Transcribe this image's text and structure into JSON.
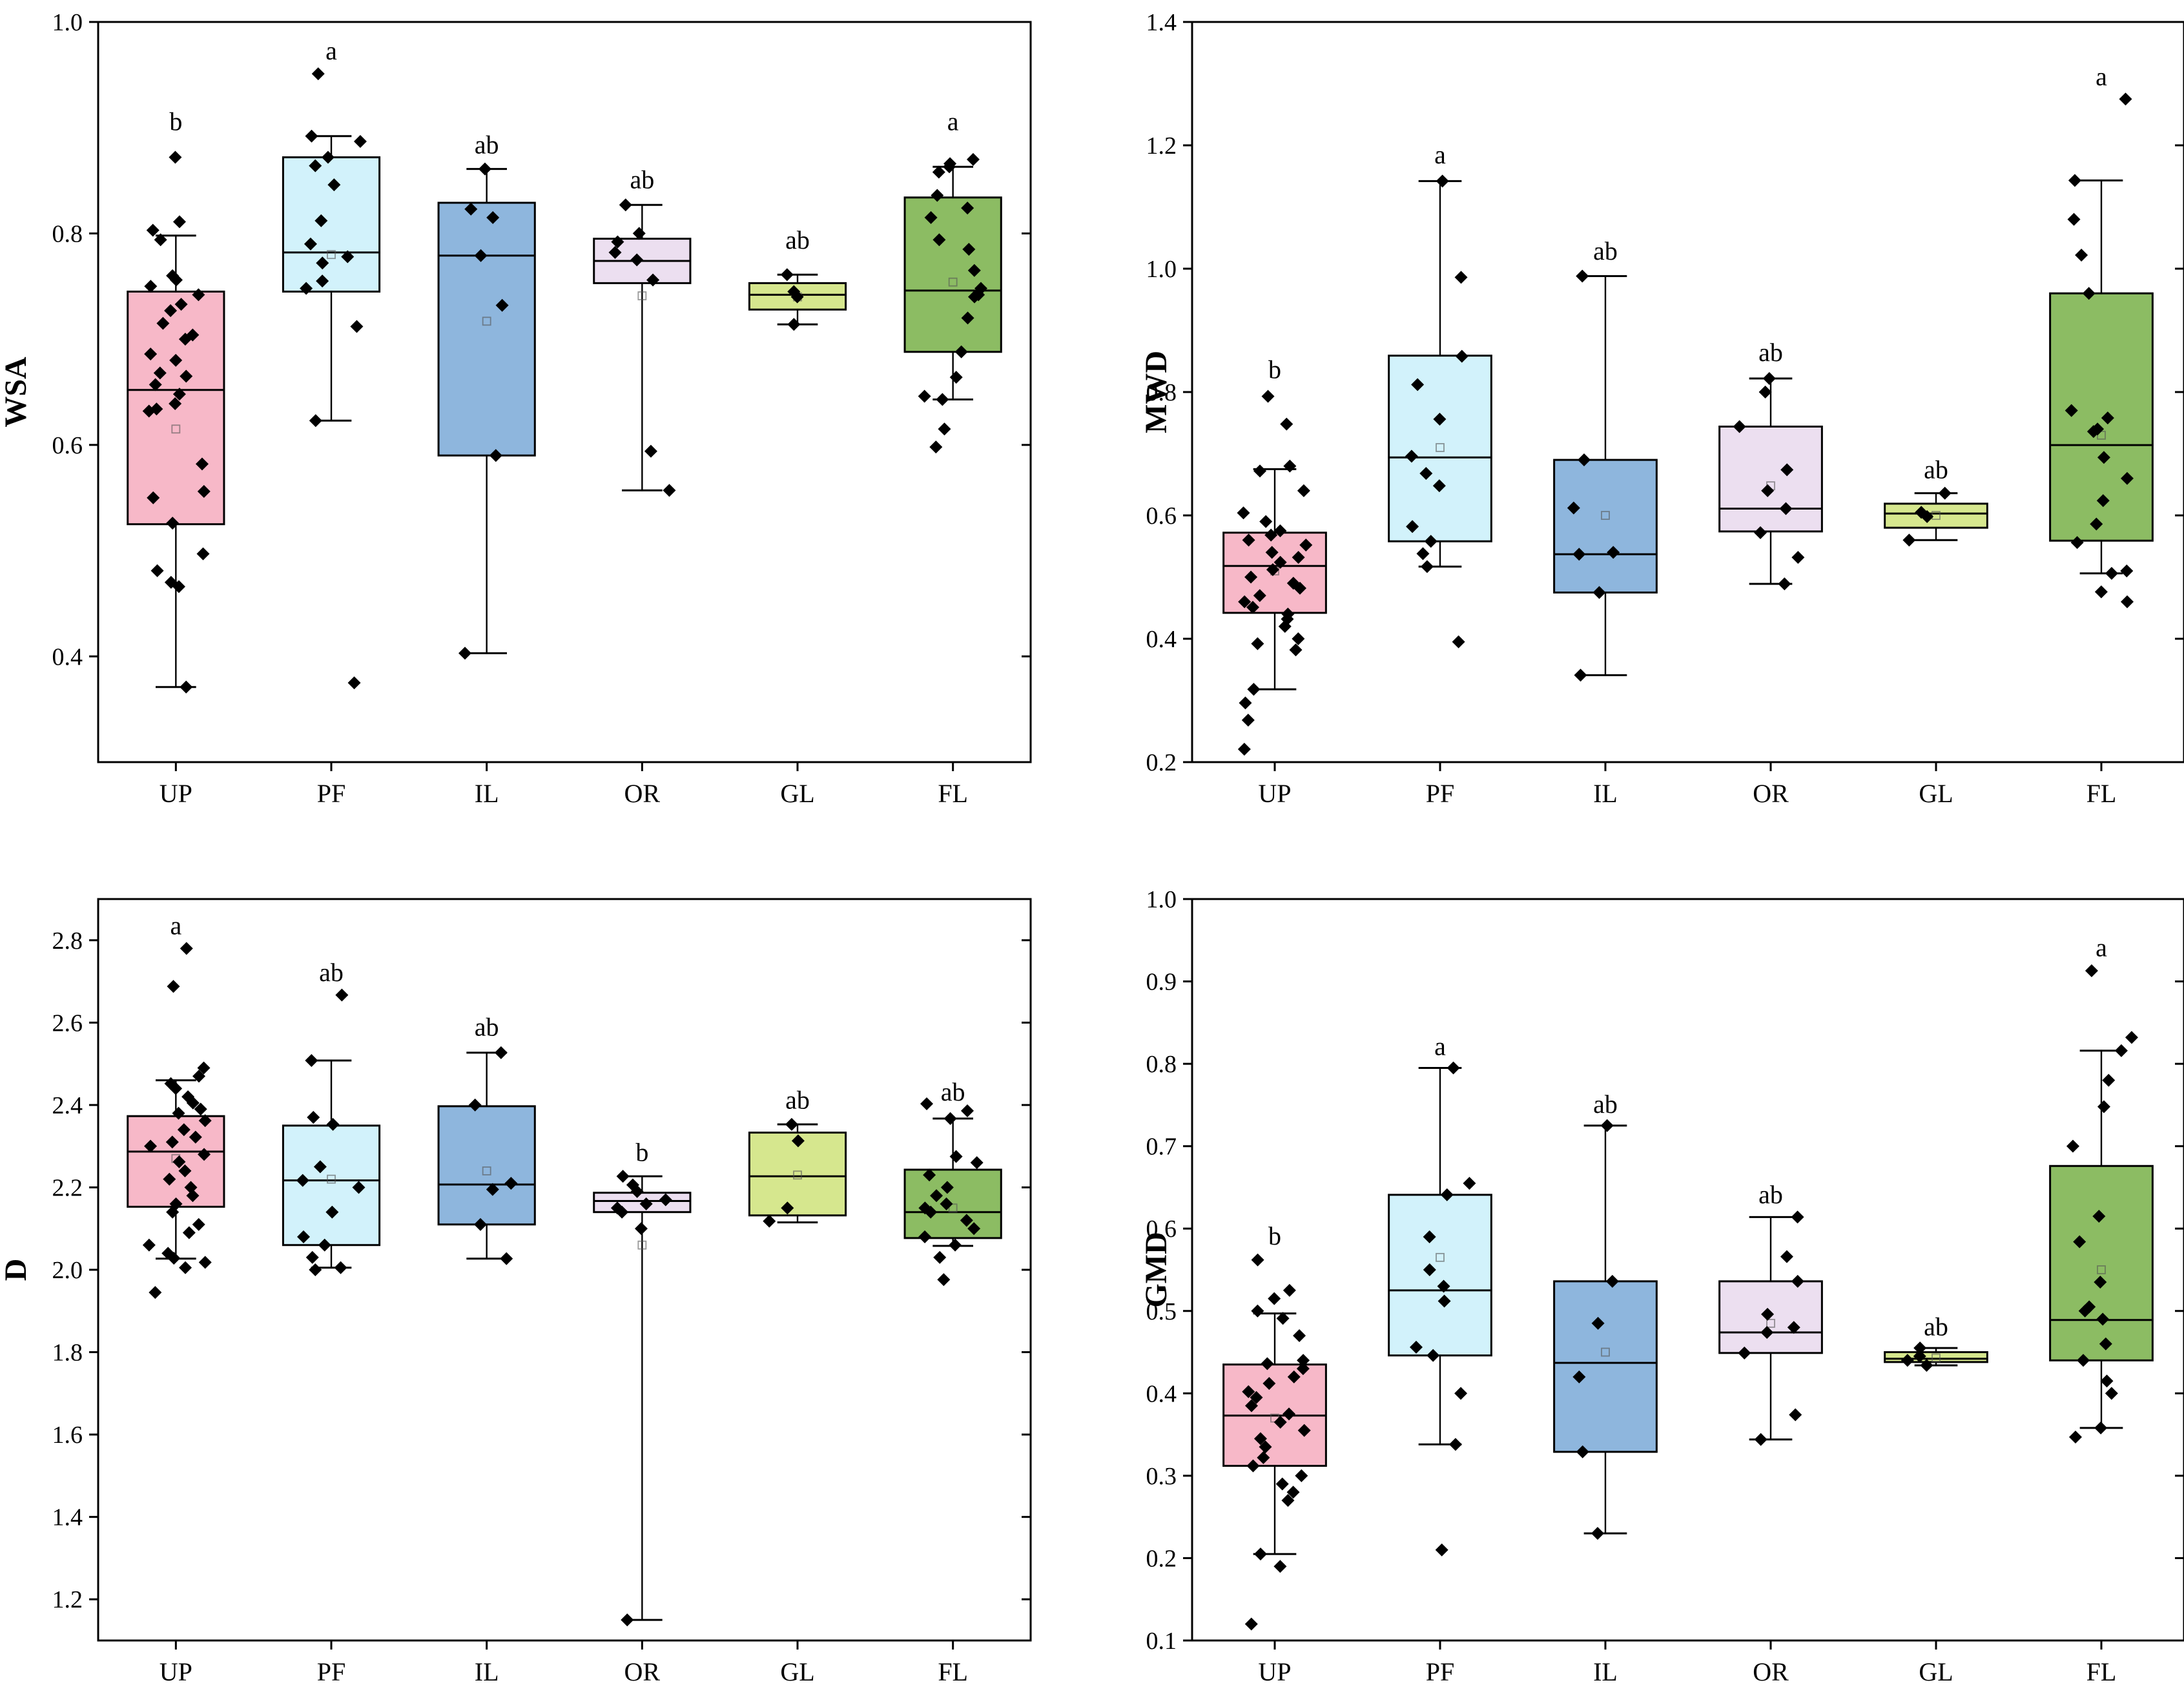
{
  "chart_data": [
    {
      "type": "box",
      "ylabel": "WSA",
      "ylim": [
        0.3,
        1.0
      ],
      "yticks": [
        0.4,
        0.6,
        0.8,
        1.0
      ],
      "ytick_labels": [
        "0.4",
        "0.6",
        "0.8",
        "1.0"
      ],
      "categories": [
        "UP",
        "PF",
        "IL",
        "OR",
        "GL",
        "FL"
      ],
      "box_colors": [
        "#f7b8c8",
        "#d2f2fb",
        "#8eb6dd",
        "#ecdff0",
        "#d6e78e",
        "#8cbc63"
      ],
      "boxes": [
        {
          "q1": 0.525,
          "median": 0.652,
          "q3": 0.745,
          "whisker_low": 0.371,
          "whisker_high": 0.798,
          "mean": 0.615
        },
        {
          "q1": 0.745,
          "median": 0.782,
          "q3": 0.872,
          "whisker_low": 0.623,
          "whisker_high": 0.892,
          "mean": 0.78
        },
        {
          "q1": 0.59,
          "median": 0.779,
          "q3": 0.829,
          "whisker_low": 0.403,
          "whisker_high": 0.861,
          "mean": 0.717
        },
        {
          "q1": 0.753,
          "median": 0.774,
          "q3": 0.795,
          "whisker_low": 0.557,
          "whisker_high": 0.827,
          "mean": 0.741
        },
        {
          "q1": 0.728,
          "median": 0.742,
          "q3": 0.753,
          "whisker_low": 0.714,
          "whisker_high": 0.761,
          "mean": 0.74
        },
        {
          "q1": 0.688,
          "median": 0.746,
          "q3": 0.834,
          "whisker_low": 0.643,
          "whisker_high": 0.863,
          "mean": 0.754
        }
      ],
      "points": [
        [
          0.872,
          0.811,
          0.803,
          0.794,
          0.76,
          0.756,
          0.75,
          0.742,
          0.733,
          0.727,
          0.715,
          0.704,
          0.7,
          0.686,
          0.68,
          0.668,
          0.665,
          0.657,
          0.648,
          0.639,
          0.634,
          0.632,
          0.582,
          0.556,
          0.55,
          0.526,
          0.497,
          0.481,
          0.47,
          0.466,
          0.371
        ],
        [
          0.951,
          0.892,
          0.887,
          0.872,
          0.864,
          0.846,
          0.812,
          0.79,
          0.778,
          0.772,
          0.755,
          0.748,
          0.712,
          0.623,
          0.375
        ],
        [
          0.861,
          0.823,
          0.815,
          0.779,
          0.732,
          0.59,
          0.403
        ],
        [
          0.827,
          0.8,
          0.792,
          0.782,
          0.775,
          0.756,
          0.594,
          0.557
        ],
        [
          0.761,
          0.745,
          0.74,
          0.714
        ],
        [
          0.87,
          0.866,
          0.863,
          0.858,
          0.836,
          0.824,
          0.815,
          0.794,
          0.785,
          0.765,
          0.748,
          0.742,
          0.74,
          0.72,
          0.688,
          0.664,
          0.646,
          0.643,
          0.615,
          0.598
        ]
      ],
      "sig_letters": [
        "b",
        "a",
        "ab",
        "ab",
        "ab",
        "a"
      ],
      "sig_values": [
        0.905,
        0.972,
        0.883,
        0.85,
        0.793,
        0.905
      ]
    },
    {
      "type": "box",
      "ylabel": "MWD",
      "ylim": [
        0.2,
        1.4
      ],
      "yticks": [
        0.2,
        0.4,
        0.6,
        0.8,
        1.0,
        1.2,
        1.4
      ],
      "ytick_labels": [
        "0.2",
        "0.4",
        "0.6",
        "0.8",
        "1.0",
        "1.2",
        "1.4"
      ],
      "categories": [
        "UP",
        "PF",
        "IL",
        "OR",
        "GL",
        "FL"
      ],
      "box_colors": [
        "#f7b8c8",
        "#d2f2fb",
        "#8eb6dd",
        "#ecdff0",
        "#d6e78e",
        "#8cbc63"
      ],
      "boxes": [
        {
          "q1": 0.442,
          "median": 0.518,
          "q3": 0.572,
          "whisker_low": 0.318,
          "whisker_high": 0.675,
          "mean": 0.51
        },
        {
          "q1": 0.558,
          "median": 0.694,
          "q3": 0.859,
          "whisker_low": 0.517,
          "whisker_high": 1.142,
          "mean": 0.71
        },
        {
          "q1": 0.475,
          "median": 0.537,
          "q3": 0.69,
          "whisker_low": 0.341,
          "whisker_high": 0.988,
          "mean": 0.6
        },
        {
          "q1": 0.574,
          "median": 0.611,
          "q3": 0.744,
          "whisker_low": 0.489,
          "whisker_high": 0.822,
          "mean": 0.648
        },
        {
          "q1": 0.58,
          "median": 0.603,
          "q3": 0.619,
          "whisker_low": 0.56,
          "whisker_high": 0.636,
          "mean": 0.6
        },
        {
          "q1": 0.559,
          "median": 0.714,
          "q3": 0.96,
          "whisker_low": 0.506,
          "whisker_high": 1.143,
          "mean": 0.73
        }
      ],
      "points": [
        [
          0.793,
          0.748,
          0.68,
          0.672,
          0.64,
          0.604,
          0.59,
          0.575,
          0.568,
          0.56,
          0.552,
          0.54,
          0.532,
          0.524,
          0.512,
          0.5,
          0.49,
          0.482,
          0.47,
          0.46,
          0.451,
          0.44,
          0.432,
          0.42,
          0.4,
          0.392,
          0.382,
          0.318,
          0.296,
          0.268,
          0.221
        ],
        [
          1.142,
          0.986,
          0.858,
          0.812,
          0.756,
          0.696,
          0.668,
          0.648,
          0.582,
          0.558,
          0.538,
          0.517,
          0.395
        ],
        [
          0.988,
          0.69,
          0.612,
          0.54,
          0.537,
          0.475,
          0.341
        ],
        [
          0.822,
          0.8,
          0.744,
          0.674,
          0.64,
          0.611,
          0.572,
          0.532,
          0.489
        ],
        [
          0.636,
          0.605,
          0.598,
          0.56
        ],
        [
          1.275,
          1.143,
          1.08,
          1.022,
          0.96,
          0.77,
          0.758,
          0.74,
          0.736,
          0.694,
          0.66,
          0.624,
          0.586,
          0.556,
          0.51,
          0.506,
          0.476,
          0.46
        ]
      ],
      "sig_letters": [
        "b",
        "a",
        "ab",
        "ab",
        "ab",
        "a"
      ],
      "sig_values": [
        0.835,
        1.183,
        1.027,
        0.863,
        0.673,
        1.31
      ]
    },
    {
      "type": "box",
      "ylabel": "D",
      "ylim": [
        1.1,
        2.9
      ],
      "yticks": [
        1.2,
        1.4,
        1.6,
        1.8,
        2.0,
        2.2,
        2.4,
        2.6,
        2.8
      ],
      "ytick_labels": [
        "1.2",
        "1.4",
        "1.6",
        "1.8",
        "2.0",
        "2.2",
        "2.4",
        "2.6",
        "2.8"
      ],
      "categories": [
        "UP",
        "PF",
        "IL",
        "OR",
        "GL",
        "FL"
      ],
      "box_colors": [
        "#f7b8c8",
        "#d2f2fb",
        "#8eb6dd",
        "#ecdff0",
        "#d6e78e",
        "#8cbc63"
      ],
      "boxes": [
        {
          "q1": 2.153,
          "median": 2.287,
          "q3": 2.373,
          "whisker_low": 2.027,
          "whisker_high": 2.46,
          "mean": 2.27
        },
        {
          "q1": 2.06,
          "median": 2.217,
          "q3": 2.35,
          "whisker_low": 2.005,
          "whisker_high": 2.508,
          "mean": 2.22
        },
        {
          "q1": 2.11,
          "median": 2.207,
          "q3": 2.397,
          "whisker_low": 2.027,
          "whisker_high": 2.527,
          "mean": 2.24
        },
        {
          "q1": 2.14,
          "median": 2.167,
          "q3": 2.187,
          "whisker_low": 1.15,
          "whisker_high": 2.227,
          "mean": 2.06
        },
        {
          "q1": 2.132,
          "median": 2.227,
          "q3": 2.333,
          "whisker_low": 2.115,
          "whisker_high": 2.353,
          "mean": 2.23
        },
        {
          "q1": 2.077,
          "median": 2.14,
          "q3": 2.243,
          "whisker_low": 2.058,
          "whisker_high": 2.367,
          "mean": 2.15
        }
      ],
      "points": [
        [
          2.78,
          2.688,
          2.49,
          2.47,
          2.452,
          2.44,
          2.42,
          2.405,
          2.39,
          2.38,
          2.362,
          2.34,
          2.322,
          2.31,
          2.3,
          2.28,
          2.262,
          2.24,
          2.22,
          2.2,
          2.18,
          2.16,
          2.14,
          2.11,
          2.09,
          2.06,
          2.04,
          2.028,
          2.018,
          2.005,
          1.945
        ],
        [
          2.667,
          2.508,
          2.37,
          2.353,
          2.25,
          2.217,
          2.2,
          2.14,
          2.08,
          2.06,
          2.03,
          2.005,
          2.0
        ],
        [
          2.527,
          2.4,
          2.21,
          2.195,
          2.11,
          2.027
        ],
        [
          2.227,
          2.206,
          2.19,
          2.17,
          2.16,
          2.15,
          2.14,
          2.1,
          1.15
        ],
        [
          2.353,
          2.313,
          2.15,
          2.118
        ],
        [
          2.403,
          2.386,
          2.367,
          2.275,
          2.26,
          2.23,
          2.2,
          2.18,
          2.16,
          2.15,
          2.14,
          2.12,
          2.1,
          2.08,
          2.06,
          2.03,
          1.976
        ]
      ],
      "sig_letters": [
        "a",
        "ab",
        "ab",
        "b",
        "ab",
        "ab"
      ],
      "sig_values": [
        2.833,
        2.72,
        2.587,
        2.283,
        2.41,
        2.43
      ]
    },
    {
      "type": "box",
      "ylabel": "GMD",
      "ylim": [
        0.1,
        1.0
      ],
      "yticks": [
        0.1,
        0.2,
        0.3,
        0.4,
        0.5,
        0.6,
        0.7,
        0.8,
        0.9,
        1.0
      ],
      "ytick_labels": [
        "0.1",
        "0.2",
        "0.3",
        "0.4",
        "0.5",
        "0.6",
        "0.7",
        "0.8",
        "0.9",
        "1.0"
      ],
      "categories": [
        "UP",
        "PF",
        "IL",
        "OR",
        "GL",
        "FL"
      ],
      "box_colors": [
        "#f7b8c8",
        "#d2f2fb",
        "#8eb6dd",
        "#ecdff0",
        "#d6e78e",
        "#8cbc63"
      ],
      "boxes": [
        {
          "q1": 0.312,
          "median": 0.373,
          "q3": 0.435,
          "whisker_low": 0.205,
          "whisker_high": 0.497,
          "mean": 0.37
        },
        {
          "q1": 0.446,
          "median": 0.525,
          "q3": 0.641,
          "whisker_low": 0.338,
          "whisker_high": 0.795,
          "mean": 0.565
        },
        {
          "q1": 0.329,
          "median": 0.437,
          "q3": 0.536,
          "whisker_low": 0.23,
          "whisker_high": 0.725,
          "mean": 0.45
        },
        {
          "q1": 0.449,
          "median": 0.474,
          "q3": 0.536,
          "whisker_low": 0.344,
          "whisker_high": 0.614,
          "mean": 0.485
        },
        {
          "q1": 0.438,
          "median": 0.442,
          "q3": 0.45,
          "whisker_low": 0.434,
          "whisker_high": 0.455,
          "mean": 0.443
        },
        {
          "q1": 0.44,
          "median": 0.489,
          "q3": 0.676,
          "whisker_low": 0.358,
          "whisker_high": 0.816,
          "mean": 0.55
        }
      ],
      "points": [
        [
          0.562,
          0.525,
          0.515,
          0.5,
          0.491,
          0.47,
          0.44,
          0.436,
          0.43,
          0.42,
          0.412,
          0.402,
          0.395,
          0.385,
          0.375,
          0.365,
          0.355,
          0.345,
          0.335,
          0.322,
          0.312,
          0.3,
          0.29,
          0.28,
          0.27,
          0.205,
          0.19,
          0.12
        ],
        [
          0.795,
          0.655,
          0.641,
          0.59,
          0.55,
          0.53,
          0.512,
          0.456,
          0.446,
          0.4,
          0.338,
          0.21
        ],
        [
          0.725,
          0.536,
          0.485,
          0.42,
          0.329,
          0.23
        ],
        [
          0.614,
          0.566,
          0.536,
          0.496,
          0.48,
          0.474,
          0.449,
          0.374,
          0.344
        ],
        [
          0.455,
          0.445,
          0.44,
          0.434
        ],
        [
          0.913,
          0.832,
          0.816,
          0.78,
          0.748,
          0.7,
          0.615,
          0.584,
          0.535,
          0.505,
          0.5,
          0.49,
          0.46,
          0.44,
          0.415,
          0.4,
          0.358,
          0.347
        ]
      ],
      "sig_letters": [
        "b",
        "a",
        "ab",
        "ab",
        "ab",
        "a"
      ],
      "sig_values": [
        0.59,
        0.82,
        0.75,
        0.64,
        0.48,
        0.94
      ]
    }
  ]
}
